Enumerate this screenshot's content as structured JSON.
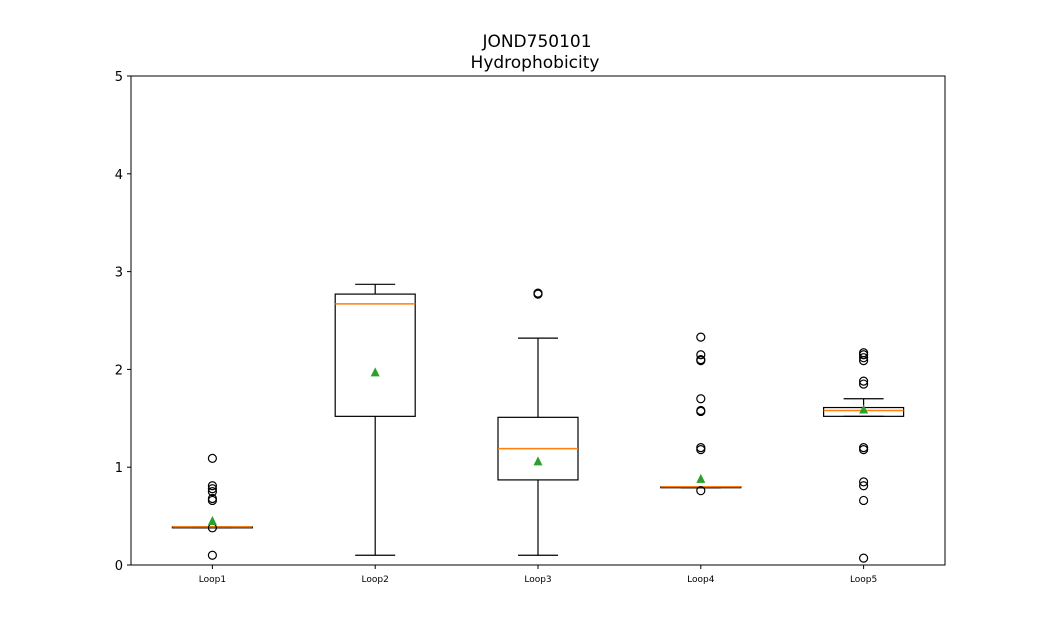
{
  "chart_data": {
    "type": "box",
    "title": "JOND750101",
    "subtitle": "Hydrophobicity",
    "xlabel": "",
    "ylabel": "",
    "ylim": [
      0,
      5
    ],
    "yticks": [
      0,
      1,
      2,
      3,
      4,
      5
    ],
    "grid": false,
    "legend": "none",
    "colors": {
      "box": "#000000",
      "median": "#ff7f0e",
      "mean": "#2ca02c",
      "outlier": "#000000"
    },
    "categories": [
      "Loop1",
      "Loop2",
      "Loop3",
      "Loop4",
      "Loop5"
    ],
    "boxes": [
      {
        "label": "Loop1",
        "whisker_low": 0.38,
        "q1": 0.38,
        "median": 0.39,
        "q3": 0.39,
        "whisker_high": 0.39,
        "mean": 0.45,
        "outliers": [
          0.1,
          0.38,
          0.66,
          0.68,
          0.75,
          0.78,
          0.81,
          1.09
        ]
      },
      {
        "label": "Loop2",
        "whisker_low": 0.1,
        "q1": 1.52,
        "median": 2.67,
        "q3": 2.77,
        "whisker_high": 2.87,
        "mean": 1.97,
        "outliers": []
      },
      {
        "label": "Loop3",
        "whisker_low": 0.1,
        "q1": 0.87,
        "median": 1.19,
        "q3": 1.51,
        "whisker_high": 2.32,
        "mean": 1.06,
        "outliers": [
          2.77,
          2.78
        ]
      },
      {
        "label": "Loop4",
        "whisker_low": 0.79,
        "q1": 0.79,
        "median": 0.8,
        "q3": 0.8,
        "whisker_high": 0.8,
        "mean": 0.88,
        "outliers": [
          0.76,
          1.18,
          1.2,
          1.57,
          1.58,
          1.7,
          2.09,
          2.1,
          2.15,
          2.33
        ]
      },
      {
        "label": "Loop5",
        "whisker_low": 1.52,
        "q1": 1.52,
        "median": 1.58,
        "q3": 1.61,
        "whisker_high": 1.7,
        "mean": 1.59,
        "outliers": [
          0.07,
          0.66,
          0.81,
          0.85,
          1.18,
          1.2,
          1.85,
          1.88,
          2.09,
          2.12,
          2.15,
          2.17
        ]
      }
    ]
  }
}
